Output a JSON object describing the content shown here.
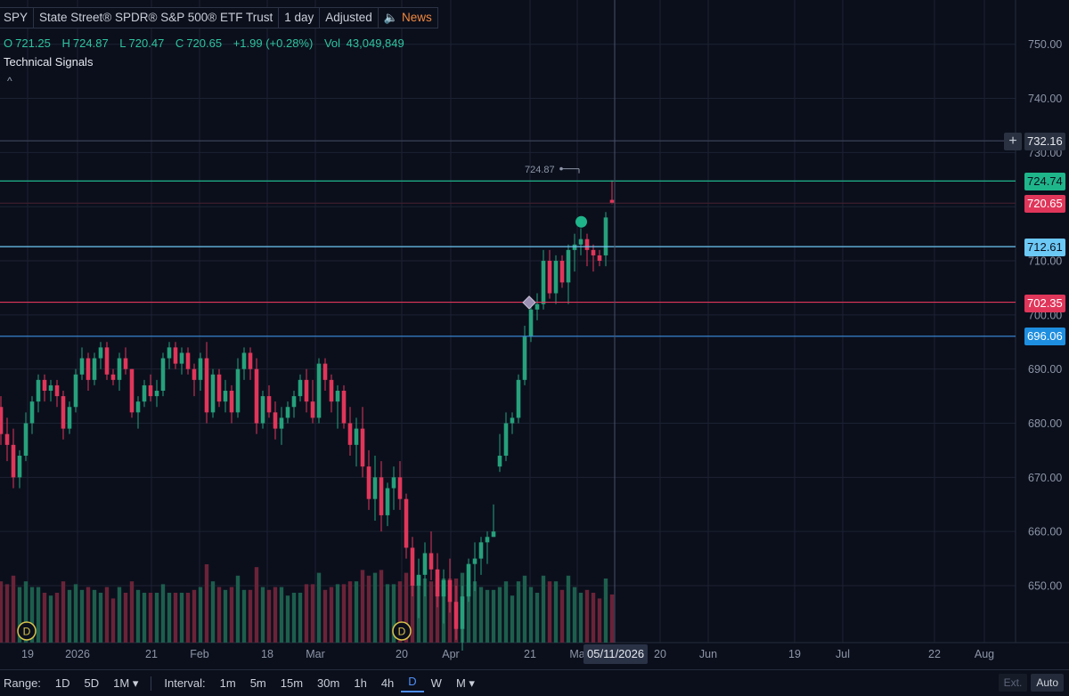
{
  "header": {
    "symbol": "SPY",
    "name": "State Street® SPDR® S&P 500® ETF Trust",
    "interval": "1 day",
    "adjustment": "Adjusted",
    "news_label": "News",
    "news_icon": "speaker-icon"
  },
  "ohlc": {
    "o_label": "O",
    "o": "721.25",
    "h_label": "H",
    "h": "724.87",
    "l_label": "L",
    "l": "720.47",
    "c_label": "C",
    "c": "720.65",
    "change": "+1.99 (+0.28%)",
    "vol_label": "Vol",
    "vol": "43,049,849"
  },
  "signals": {
    "title": "Technical Signals",
    "collapse_icon": "^"
  },
  "price_levels": {
    "l1": "732.16",
    "l2": "724.74",
    "l3": "720.65",
    "l4": "712.61",
    "l5": "702.35",
    "l6": "696.06",
    "high_note": "724.87"
  },
  "crosshair": {
    "date": "05/11/2026"
  },
  "bottom": {
    "range_label": "Range:",
    "ranges": [
      "1D",
      "5D",
      "1M ▾"
    ],
    "interval_label": "Interval:",
    "intervals": [
      "1m",
      "5m",
      "15m",
      "30m",
      "1h",
      "4h",
      "D",
      "W",
      "M ▾"
    ],
    "selected_interval": "D",
    "ext": "Ext.",
    "auto": "Auto"
  },
  "colors": {
    "up": "#26a17b",
    "down": "#e0365a",
    "bg": "#0b0f1c",
    "grid": "#1c2232",
    "tag_l1": "#2a3140",
    "tag_l2": "#1fb58a",
    "tag_l3": "#e0365a",
    "tag_l4": "#6cc8f5",
    "tag_l5": "#e0365a",
    "tag_l6": "#1e8fe0"
  },
  "chart_data": {
    "type": "candlestick",
    "y_axis": {
      "min": 643,
      "max": 753,
      "ticks": [
        650,
        660,
        670,
        680,
        690,
        700,
        710,
        720,
        730,
        740,
        750
      ],
      "tick_labels": [
        "650.00",
        "660.00",
        "670.00",
        "680.00",
        "690.00",
        "700.00",
        "710.00",
        "720.00",
        "730.00",
        "740.00",
        "750.00"
      ]
    },
    "x_labels": [
      "19",
      "2026",
      "21",
      "Feb",
      "18",
      "Mar",
      "20",
      "Apr",
      "21",
      "Ma",
      "20",
      "Jun",
      "19",
      "Jul",
      "22",
      "Aug"
    ],
    "horizontal_lines": [
      732.16,
      724.74,
      712.61,
      702.35,
      696.06
    ],
    "markers": [
      {
        "type": "dot",
        "index": 93,
        "price": 717.2
      },
      {
        "type": "diamond",
        "index": 85,
        "price": 702.3
      },
      {
        "type": "dividend",
        "label": "D",
        "index": 2
      },
      {
        "type": "dividend",
        "label": "D",
        "index": 65
      }
    ],
    "ohlc": [
      [
        683,
        685,
        676,
        678
      ],
      [
        678,
        681,
        673,
        676
      ],
      [
        676,
        679,
        668,
        670
      ],
      [
        670,
        675,
        668,
        674
      ],
      [
        674,
        682,
        673,
        680
      ],
      [
        680,
        685,
        678,
        684
      ],
      [
        684,
        689,
        682,
        688
      ],
      [
        688,
        689,
        684,
        686
      ],
      [
        686,
        688,
        684,
        687
      ],
      [
        687,
        688,
        683,
        685
      ],
      [
        685,
        686,
        677,
        679
      ],
      [
        679,
        684,
        678,
        683
      ],
      [
        683,
        690,
        682,
        689
      ],
      [
        689,
        694,
        688,
        692
      ],
      [
        692,
        693,
        686,
        688
      ],
      [
        688,
        693,
        687,
        692
      ],
      [
        692,
        695,
        690,
        694
      ],
      [
        694,
        695,
        688,
        689
      ],
      [
        689,
        690,
        687,
        688
      ],
      [
        688,
        693,
        686,
        692
      ],
      [
        692,
        694,
        689,
        690
      ],
      [
        690,
        690,
        681,
        682
      ],
      [
        682,
        685,
        679,
        684
      ],
      [
        684,
        688,
        683,
        687
      ],
      [
        687,
        689,
        684,
        685
      ],
      [
        685,
        688,
        683,
        686
      ],
      [
        686,
        693,
        685,
        692
      ],
      [
        692,
        695,
        690,
        694
      ],
      [
        694,
        695,
        690,
        691
      ],
      [
        691,
        694,
        689,
        693
      ],
      [
        693,
        694,
        689,
        690
      ],
      [
        690,
        691,
        685,
        688
      ],
      [
        688,
        693,
        686,
        692
      ],
      [
        692,
        695,
        680,
        682
      ],
      [
        682,
        690,
        681,
        689
      ],
      [
        689,
        690,
        683,
        684
      ],
      [
        684,
        688,
        682,
        686
      ],
      [
        686,
        687,
        680,
        682
      ],
      [
        682,
        692,
        681,
        690
      ],
      [
        690,
        694,
        688,
        693
      ],
      [
        693,
        694,
        688,
        690
      ],
      [
        690,
        692,
        678,
        680
      ],
      [
        680,
        686,
        679,
        685
      ],
      [
        685,
        687,
        681,
        682
      ],
      [
        682,
        684,
        677,
        679
      ],
      [
        679,
        683,
        676,
        681
      ],
      [
        681,
        684,
        680,
        683
      ],
      [
        683,
        686,
        681,
        685
      ],
      [
        685,
        689,
        684,
        688
      ],
      [
        688,
        690,
        682,
        684
      ],
      [
        684,
        688,
        680,
        681
      ],
      [
        681,
        692,
        680,
        691
      ],
      [
        691,
        692,
        686,
        688
      ],
      [
        688,
        689,
        682,
        684
      ],
      [
        684,
        687,
        679,
        686
      ],
      [
        686,
        687,
        679,
        680
      ],
      [
        680,
        683,
        674,
        676
      ],
      [
        676,
        681,
        672,
        679
      ],
      [
        679,
        683,
        670,
        672
      ],
      [
        672,
        675,
        664,
        666
      ],
      [
        666,
        674,
        662,
        670
      ],
      [
        670,
        673,
        660,
        663
      ],
      [
        663,
        669,
        661,
        668
      ],
      [
        668,
        672,
        664,
        670
      ],
      [
        670,
        673,
        664,
        666
      ],
      [
        666,
        667,
        655,
        657
      ],
      [
        657,
        659,
        648,
        650
      ],
      [
        650,
        655,
        644,
        652
      ],
      [
        652,
        658,
        648,
        656
      ],
      [
        656,
        660,
        651,
        653
      ],
      [
        653,
        656,
        646,
        648
      ],
      [
        648,
        653,
        643,
        651
      ],
      [
        651,
        655,
        645,
        647
      ],
      [
        647,
        650,
        640,
        642
      ],
      [
        642,
        650,
        638,
        648
      ],
      [
        648,
        655,
        647,
        654
      ],
      [
        654,
        658,
        649,
        655
      ],
      [
        655,
        659,
        652,
        658
      ],
      [
        658,
        660,
        654,
        659
      ],
      [
        659,
        665,
        659,
        660
      ],
      [
        672,
        678,
        671,
        674
      ],
      [
        674,
        682,
        673,
        680
      ],
      [
        680,
        682,
        678,
        681
      ],
      [
        681,
        689,
        680,
        688
      ],
      [
        688,
        698,
        687,
        696
      ],
      [
        696,
        702,
        695,
        701
      ],
      [
        701,
        704,
        699,
        702
      ],
      [
        702,
        712,
        701,
        710
      ],
      [
        710,
        712,
        703,
        704
      ],
      [
        704,
        711,
        702,
        710
      ],
      [
        710,
        711,
        705,
        706
      ],
      [
        706,
        713,
        702,
        712
      ],
      [
        712,
        715,
        708,
        713
      ],
      [
        713,
        716,
        711,
        714
      ],
      [
        714,
        715,
        709,
        712
      ],
      [
        712,
        713,
        708,
        711
      ],
      [
        711,
        712,
        709,
        710
      ],
      [
        711,
        719,
        709,
        718
      ],
      [
        721.25,
        724.87,
        720.47,
        720.65
      ]
    ],
    "volume_note": "relative volume bars at bottom of chart"
  }
}
